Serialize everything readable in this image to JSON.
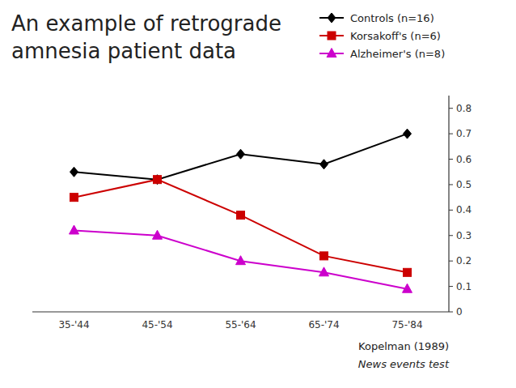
{
  "chart_data": {
    "type": "line",
    "title": [
      "An example of retrograde",
      "amnesia patient data"
    ],
    "categories": [
      "35-'44",
      "45-'54",
      "55-'64",
      "65-'74",
      "75-'84"
    ],
    "series": [
      {
        "name": "Controls (n=16)",
        "color": "#000000",
        "marker": "diamond",
        "values": [
          0.55,
          0.52,
          0.62,
          0.58,
          0.7
        ]
      },
      {
        "name": "Korsakoff's (n=6)",
        "color": "#cc0000",
        "marker": "square",
        "values": [
          0.45,
          0.52,
          0.38,
          0.22,
          0.155
        ]
      },
      {
        "name": "Alzheimer's (n=8)",
        "color": "#cc00cc",
        "marker": "triangle",
        "values": [
          0.32,
          0.3,
          0.2,
          0.155,
          0.09
        ]
      }
    ],
    "ylim": [
      0,
      0.85
    ],
    "yticks": [
      0,
      0.1,
      0.2,
      0.3,
      0.4,
      0.5,
      0.6,
      0.7,
      0.8
    ],
    "grid": false,
    "legend": "top right",
    "annotations": [
      "Kopelman (1989)",
      "News events test"
    ]
  }
}
